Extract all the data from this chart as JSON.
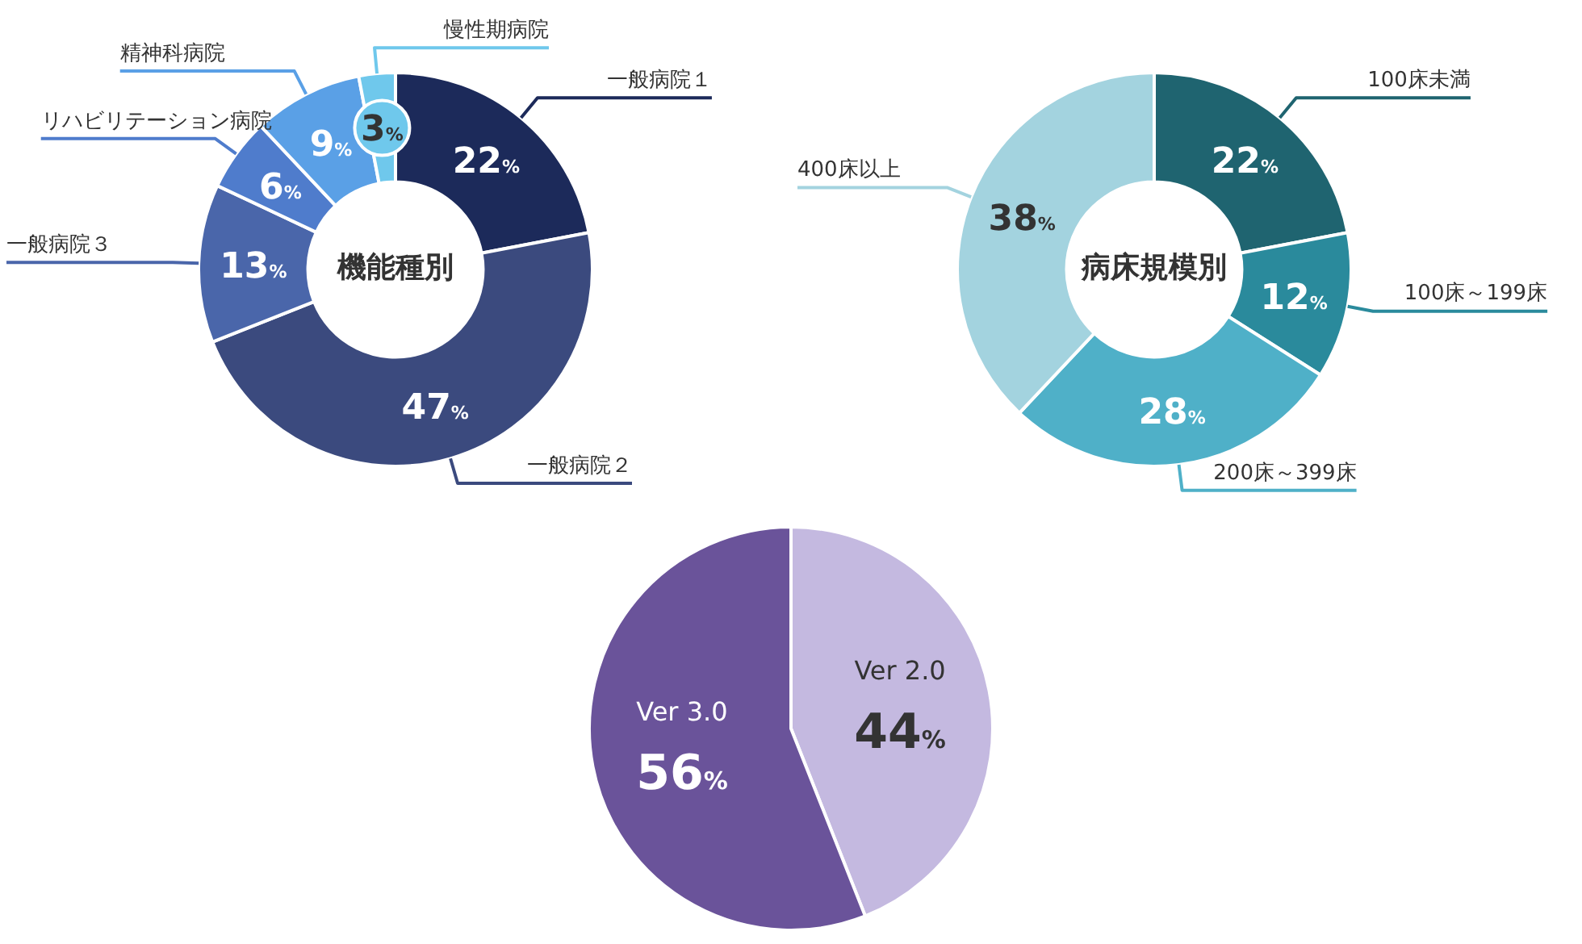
{
  "chart_data": [
    {
      "type": "donut",
      "title": "機能種別",
      "categories": [
        "一般病院１",
        "一般病院２",
        "一般病院３",
        "リハビリテーション病院",
        "精神科病院",
        "慢性期病院"
      ],
      "values": [
        22,
        47,
        13,
        6,
        9,
        3
      ],
      "colors": [
        "#1c2a5a",
        "#3b4a7e",
        "#4a66aa",
        "#4f7ccc",
        "#5aa0e6",
        "#6fc8ec"
      ],
      "value_labels": [
        "22%",
        "47%",
        "13%",
        "6%",
        "9%",
        "3%"
      ]
    },
    {
      "type": "donut",
      "title": "病床規模別",
      "categories": [
        "100床未満",
        "100床～199床",
        "200床～399床",
        "400床以上"
      ],
      "values": [
        22,
        12,
        28,
        38
      ],
      "colors": [
        "#1f6470",
        "#2a8a9c",
        "#4fb0c8",
        "#a3d3df"
      ],
      "value_labels": [
        "22%",
        "12%",
        "28%",
        "38%"
      ]
    },
    {
      "type": "pie",
      "categories": [
        "Ver 2.0",
        "Ver 3.0"
      ],
      "values": [
        44,
        56
      ],
      "colors": [
        "#c4b9e0",
        "#6a539a"
      ],
      "value_labels": [
        "44%",
        "56%"
      ]
    }
  ]
}
